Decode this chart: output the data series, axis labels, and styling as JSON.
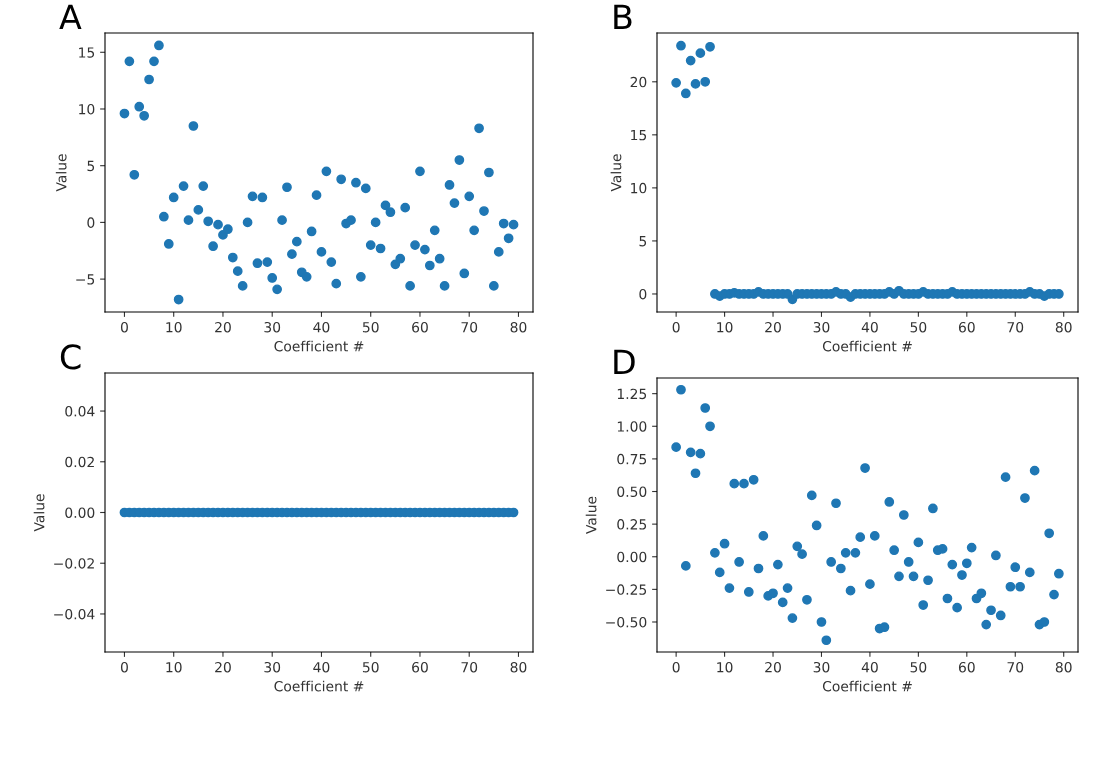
{
  "chart_data": [
    {
      "type": "scatter",
      "annotations": [
        "A"
      ],
      "xlabel": "Coefficient #",
      "ylabel": "Value",
      "marker": "circle",
      "grid": false,
      "xlim": [
        -3.95,
        82.95
      ],
      "xticks": [
        0,
        10,
        20,
        30,
        40,
        50,
        60,
        70,
        80
      ],
      "ylim": [
        -7.9,
        16.7
      ],
      "yticks": [
        {
          "value": -5,
          "label": "−5"
        },
        0,
        5,
        10,
        15
      ],
      "series": [
        {
          "color": "#1f77b4",
          "x": [
            0,
            1,
            2,
            3,
            4,
            5,
            6,
            7,
            8,
            9,
            10,
            11,
            12,
            13,
            14,
            15,
            16,
            17,
            18,
            19,
            20,
            21,
            22,
            23,
            24,
            25,
            26,
            27,
            28,
            29,
            30,
            31,
            32,
            33,
            34,
            35,
            36,
            37,
            38,
            39,
            40,
            41,
            42,
            43,
            44,
            45,
            46,
            47,
            48,
            49,
            50,
            51,
            52,
            53,
            54,
            55,
            56,
            57,
            58,
            59,
            60,
            61,
            62,
            63,
            64,
            65,
            66,
            67,
            68,
            69,
            70,
            71,
            72,
            73,
            74,
            75,
            76,
            77,
            78,
            79
          ],
          "values": [
            9.6,
            14.2,
            4.2,
            10.2,
            9.4,
            12.6,
            14.2,
            15.6,
            0.5,
            -1.9,
            2.2,
            -6.8,
            3.2,
            0.2,
            8.5,
            1.1,
            3.2,
            0.1,
            -2.1,
            -0.2,
            -1.1,
            -0.6,
            -3.1,
            -4.3,
            -5.6,
            0.0,
            2.3,
            -3.6,
            2.2,
            -3.5,
            -4.9,
            -5.9,
            0.2,
            3.1,
            -2.8,
            -1.7,
            -4.4,
            -4.8,
            -0.8,
            2.4,
            -2.6,
            4.5,
            -3.5,
            -5.4,
            3.8,
            -0.1,
            0.2,
            3.5,
            -4.8,
            3.0,
            -2.0,
            0.0,
            -2.3,
            1.5,
            0.9,
            -3.7,
            -3.2,
            1.3,
            -5.6,
            -2.0,
            4.5,
            -2.4,
            -3.8,
            -0.7,
            -3.2,
            -5.6,
            3.3,
            1.7,
            5.5,
            -4.5,
            2.3,
            -0.7,
            8.3,
            1.0,
            4.4,
            -5.6,
            -2.6,
            -0.1,
            -1.4,
            -0.2
          ]
        }
      ]
    },
    {
      "type": "scatter",
      "annotations": [
        "B"
      ],
      "xlabel": "Coefficient #",
      "ylabel": "Value",
      "marker": "circle",
      "grid": false,
      "xlim": [
        -3.95,
        82.95
      ],
      "xticks": [
        0,
        10,
        20,
        30,
        40,
        50,
        60,
        70,
        80
      ],
      "ylim": [
        -1.7,
        24.6
      ],
      "yticks": [
        0,
        5,
        10,
        15,
        20
      ],
      "series": [
        {
          "color": "#1f77b4",
          "x": [
            0,
            1,
            2,
            3,
            4,
            5,
            6,
            7,
            8,
            9,
            10,
            11,
            12,
            13,
            14,
            15,
            16,
            17,
            18,
            19,
            20,
            21,
            22,
            23,
            24,
            25,
            26,
            27,
            28,
            29,
            30,
            31,
            32,
            33,
            34,
            35,
            36,
            37,
            38,
            39,
            40,
            41,
            42,
            43,
            44,
            45,
            46,
            47,
            48,
            49,
            50,
            51,
            52,
            53,
            54,
            55,
            56,
            57,
            58,
            59,
            60,
            61,
            62,
            63,
            64,
            65,
            66,
            67,
            68,
            69,
            70,
            71,
            72,
            73,
            74,
            75,
            76,
            77,
            78,
            79
          ],
          "values": [
            19.9,
            23.4,
            18.9,
            22.0,
            19.8,
            22.7,
            20.0,
            23.3,
            0,
            -0.2,
            0,
            0,
            0.1,
            0,
            0,
            0,
            0,
            0.2,
            0,
            0,
            0,
            0,
            0,
            0,
            -0.5,
            0,
            0,
            0,
            0,
            0,
            0,
            0,
            0,
            0.2,
            0,
            0,
            -0.3,
            0,
            0,
            0,
            0,
            0,
            0,
            0,
            0.2,
            0,
            0.3,
            0,
            0,
            0,
            0,
            0.2,
            0,
            0,
            0,
            0,
            0,
            0.2,
            0,
            0,
            0,
            0,
            0,
            0,
            0,
            0,
            0,
            0,
            0,
            0,
            0,
            0,
            0,
            0.2,
            0,
            0,
            -0.2,
            0,
            0,
            0
          ]
        }
      ]
    },
    {
      "type": "scatter",
      "annotations": [
        "C"
      ],
      "xlabel": "Coefficient #",
      "ylabel": "Value",
      "marker": "circle",
      "grid": false,
      "xlim": [
        -3.95,
        82.95
      ],
      "xticks": [
        0,
        10,
        20,
        30,
        40,
        50,
        60,
        70,
        80
      ],
      "ylim": [
        -0.055,
        0.055
      ],
      "yticks": [
        {
          "value": -0.04,
          "label": "−0.04"
        },
        {
          "value": -0.02,
          "label": "−0.02"
        },
        {
          "value": 0,
          "label": "0.00"
        },
        {
          "value": 0.02,
          "label": "0.02"
        },
        {
          "value": 0.04,
          "label": "0.04"
        }
      ],
      "series": [
        {
          "color": "#1f77b4",
          "x": [
            0,
            1,
            2,
            3,
            4,
            5,
            6,
            7,
            8,
            9,
            10,
            11,
            12,
            13,
            14,
            15,
            16,
            17,
            18,
            19,
            20,
            21,
            22,
            23,
            24,
            25,
            26,
            27,
            28,
            29,
            30,
            31,
            32,
            33,
            34,
            35,
            36,
            37,
            38,
            39,
            40,
            41,
            42,
            43,
            44,
            45,
            46,
            47,
            48,
            49,
            50,
            51,
            52,
            53,
            54,
            55,
            56,
            57,
            58,
            59,
            60,
            61,
            62,
            63,
            64,
            65,
            66,
            67,
            68,
            69,
            70,
            71,
            72,
            73,
            74,
            75,
            76,
            77,
            78,
            79
          ],
          "values": [
            0,
            0,
            0,
            0,
            0,
            0,
            0,
            0,
            0,
            0,
            0,
            0,
            0,
            0,
            0,
            0,
            0,
            0,
            0,
            0,
            0,
            0,
            0,
            0,
            0,
            0,
            0,
            0,
            0,
            0,
            0,
            0,
            0,
            0,
            0,
            0,
            0,
            0,
            0,
            0,
            0,
            0,
            0,
            0,
            0,
            0,
            0,
            0,
            0,
            0,
            0,
            0,
            0,
            0,
            0,
            0,
            0,
            0,
            0,
            0,
            0,
            0,
            0,
            0,
            0,
            0,
            0,
            0,
            0,
            0,
            0,
            0,
            0,
            0,
            0,
            0,
            0,
            0,
            0,
            0
          ]
        }
      ]
    },
    {
      "type": "scatter",
      "annotations": [
        "D"
      ],
      "xlabel": "Coefficient #",
      "ylabel": "Value",
      "marker": "circle",
      "grid": false,
      "xlim": [
        -3.95,
        82.95
      ],
      "xticks": [
        0,
        10,
        20,
        30,
        40,
        50,
        60,
        70,
        80
      ],
      "ylim": [
        -0.73,
        1.37
      ],
      "yticks": [
        {
          "value": -0.5,
          "label": "−0.50"
        },
        {
          "value": -0.25,
          "label": "−0.25"
        },
        {
          "value": 0,
          "label": "0.00"
        },
        {
          "value": 0.25,
          "label": "0.25"
        },
        {
          "value": 0.5,
          "label": "0.50"
        },
        {
          "value": 0.75,
          "label": "0.75"
        },
        {
          "value": 1,
          "label": "1.00"
        },
        {
          "value": 1.25,
          "label": "1.25"
        }
      ],
      "series": [
        {
          "color": "#1f77b4",
          "x": [
            0,
            1,
            2,
            3,
            4,
            5,
            6,
            7,
            8,
            9,
            10,
            11,
            12,
            13,
            14,
            15,
            16,
            17,
            18,
            19,
            20,
            21,
            22,
            23,
            24,
            25,
            26,
            27,
            28,
            29,
            30,
            31,
            32,
            33,
            34,
            35,
            36,
            37,
            38,
            39,
            40,
            41,
            42,
            43,
            44,
            45,
            46,
            47,
            48,
            49,
            50,
            51,
            52,
            53,
            54,
            55,
            56,
            57,
            58,
            59,
            60,
            61,
            62,
            63,
            64,
            65,
            66,
            67,
            68,
            69,
            70,
            71,
            72,
            73,
            74,
            75,
            76,
            77,
            78,
            79
          ],
          "values": [
            0.84,
            1.28,
            -0.07,
            0.8,
            0.64,
            0.79,
            1.14,
            1.0,
            0.03,
            -0.12,
            0.1,
            -0.24,
            0.56,
            -0.04,
            0.56,
            -0.27,
            0.59,
            -0.09,
            0.16,
            -0.3,
            -0.28,
            -0.06,
            -0.35,
            -0.24,
            -0.47,
            0.08,
            0.02,
            -0.33,
            0.47,
            0.24,
            -0.5,
            -0.64,
            -0.04,
            0.41,
            -0.09,
            0.03,
            -0.26,
            0.03,
            0.15,
            0.68,
            -0.21,
            0.16,
            -0.55,
            -0.54,
            0.42,
            0.05,
            -0.15,
            0.32,
            -0.04,
            -0.15,
            0.11,
            -0.37,
            -0.18,
            0.37,
            0.05,
            0.06,
            -0.32,
            -0.06,
            -0.39,
            -0.14,
            -0.05,
            0.07,
            -0.32,
            -0.28,
            -0.52,
            -0.41,
            0.01,
            -0.45,
            0.61,
            -0.23,
            -0.08,
            -0.23,
            0.45,
            -0.12,
            0.66,
            -0.52,
            -0.5,
            0.18,
            -0.29,
            -0.13
          ]
        }
      ]
    }
  ]
}
